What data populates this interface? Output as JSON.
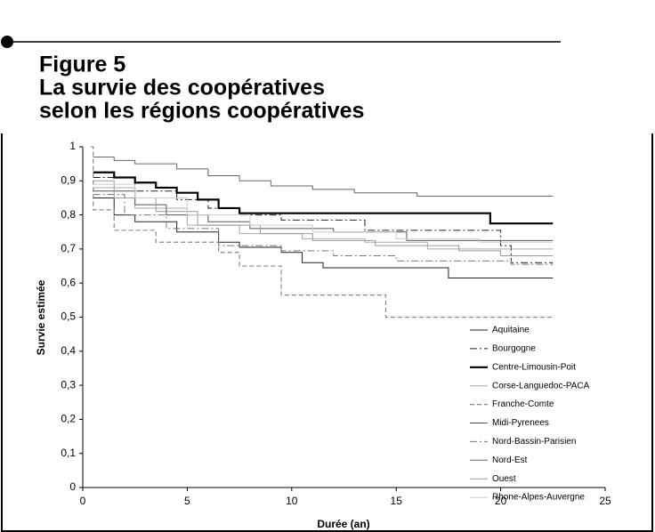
{
  "chart_data": {
    "type": "step",
    "title": [
      "Figure 5",
      "La survie des coopératives",
      "selon les régions coopératives"
    ],
    "xlabel": "Durée (an)",
    "ylabel": "Survie estimée",
    "xlim": [
      0,
      25
    ],
    "xticks": [
      0,
      5,
      10,
      15,
      20,
      25
    ],
    "ylim": [
      0,
      1
    ],
    "yticks": [
      0,
      {
        "value": 0.1,
        "label": "0,1"
      },
      {
        "value": 0.2,
        "label": "0,2"
      },
      {
        "value": 0.3,
        "label": "0,3"
      },
      {
        "value": 0.4,
        "label": "0,4"
      },
      {
        "value": 0.5,
        "label": "0,5"
      },
      {
        "value": 0.6,
        "label": "0,6"
      },
      {
        "value": 0.7,
        "label": "0,7"
      },
      {
        "value": 0.8,
        "label": "0,8"
      },
      {
        "value": 0.9,
        "label": "0,9"
      },
      1
    ],
    "legend": "lower right",
    "series": [
      {
        "name": "Aquitaine",
        "color": "#222222",
        "width": 1,
        "dash": "",
        "x": [
          0.5,
          1.5,
          2.5,
          4.5,
          6.5,
          7.5,
          9.5,
          10.5,
          11.5,
          17.5,
          22.5
        ],
        "values": [
          0.85,
          0.8,
          0.78,
          0.75,
          0.72,
          0.705,
          0.69,
          0.66,
          0.645,
          0.615,
          0.615
        ]
      },
      {
        "name": "Bourgogne",
        "color": "#222222",
        "width": 1,
        "dash": "8,3,2,3",
        "x": [
          0.5,
          2.5,
          4.5,
          6,
          7.5,
          9.5,
          13.5,
          20,
          20.5,
          22.5
        ],
        "values": [
          0.91,
          0.87,
          0.845,
          0.82,
          0.8,
          0.785,
          0.755,
          0.71,
          0.66,
          0.66
        ]
      },
      {
        "name": "Centre-Limousin-Poit",
        "color": "#000000",
        "width": 2.2,
        "dash": "",
        "x": [
          0.5,
          1.5,
          2.5,
          3.5,
          4.5,
          5.5,
          6.5,
          7.5,
          19.5,
          22.5
        ],
        "values": [
          0.925,
          0.91,
          0.895,
          0.88,
          0.865,
          0.845,
          0.82,
          0.805,
          0.775,
          0.775
        ]
      },
      {
        "name": "Corse-Languedoc-PACA",
        "color": "#aaaaaa",
        "width": 1,
        "dash": "",
        "x": [
          0.5,
          2.5,
          5,
          7.5,
          10.5,
          13.5,
          16.5,
          22.5
        ],
        "values": [
          0.88,
          0.82,
          0.77,
          0.745,
          0.73,
          0.72,
          0.7,
          0.7
        ]
      },
      {
        "name": "Franche-Comte",
        "color": "#888888",
        "width": 1.2,
        "dash": "5,3",
        "x": [
          0.4,
          0.5,
          1.5,
          3.5,
          6.5,
          7.5,
          9.5,
          14.5,
          22.5
        ],
        "values": [
          1,
          0.815,
          0.755,
          0.72,
          0.69,
          0.65,
          0.565,
          0.5,
          0.5
        ]
      },
      {
        "name": "Midi-Pyrenees",
        "color": "#555555",
        "width": 1,
        "dash": "",
        "x": [
          0.5,
          2.5,
          4,
          6,
          8,
          12,
          15.5,
          22.5
        ],
        "values": [
          0.87,
          0.83,
          0.8,
          0.78,
          0.76,
          0.75,
          0.725,
          0.725
        ]
      },
      {
        "name": "Nord-Bassin-Parisien",
        "color": "#777777",
        "width": 1,
        "dash": "8,3,2,3",
        "x": [
          0.5,
          2,
          4,
          6.5,
          9.5,
          12,
          15,
          20.5,
          22.5
        ],
        "values": [
          0.86,
          0.8,
          0.76,
          0.71,
          0.695,
          0.68,
          0.665,
          0.655,
          0.655
        ]
      },
      {
        "name": "Nord-Est",
        "color": "#666666",
        "width": 1,
        "dash": "",
        "x": [
          0.5,
          1.5,
          2.5,
          4.5,
          6,
          7.5,
          9,
          11,
          13,
          16,
          22.5
        ],
        "values": [
          0.97,
          0.96,
          0.95,
          0.935,
          0.915,
          0.9,
          0.885,
          0.875,
          0.865,
          0.855,
          0.855
        ]
      },
      {
        "name": "Ouest",
        "color": "#999999",
        "width": 1,
        "dash": "",
        "x": [
          0.5,
          1.5,
          3.5,
          5.5,
          8.5,
          11,
          14,
          18,
          20,
          22.5
        ],
        "values": [
          0.9,
          0.85,
          0.81,
          0.77,
          0.745,
          0.725,
          0.71,
          0.695,
          0.68,
          0.68
        ]
      },
      {
        "name": "Rhone-Alpes-Auvergne",
        "color": "#cccccc",
        "width": 1,
        "dash": "",
        "x": [
          0.5,
          2.5,
          5,
          8,
          11,
          15,
          19,
          22.5
        ],
        "values": [
          0.89,
          0.85,
          0.8,
          0.77,
          0.75,
          0.73,
          0.72,
          0.72
        ]
      }
    ]
  }
}
